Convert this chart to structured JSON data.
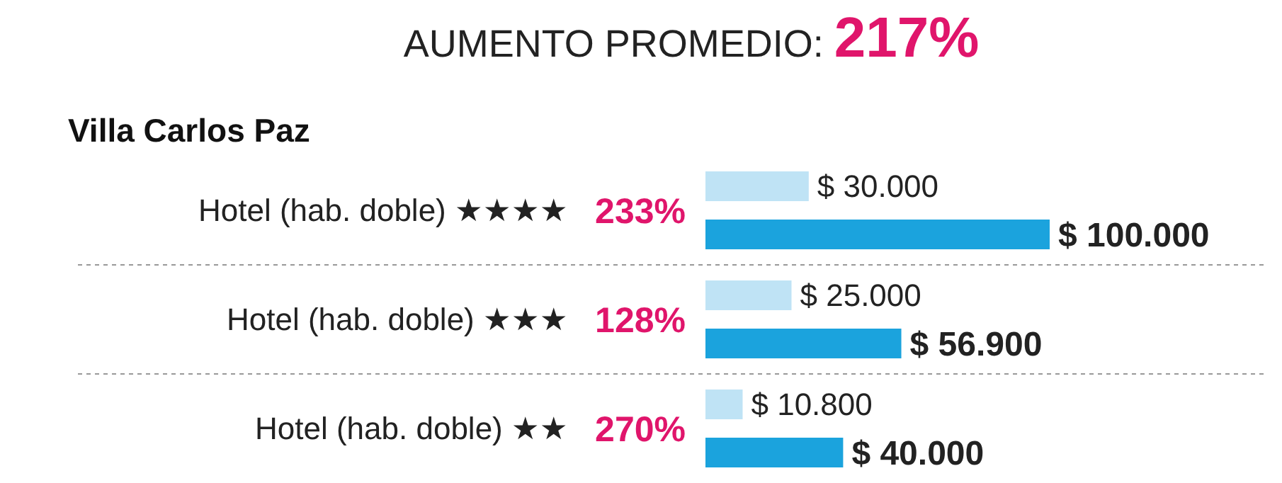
{
  "chart_data": {
    "type": "bar",
    "orientation": "horizontal",
    "title": "AUMENTO PROMEDIO: 217%",
    "subtitle": "Villa Carlos Paz",
    "categories": [
      "Hotel (hab. doble) ★★★★",
      "Hotel (hab. doble) ★★★",
      "Hotel (hab. doble) ★★"
    ],
    "series": [
      {
        "color": "#bfe3f5",
        "values": [
          30000,
          25000,
          10800
        ],
        "value_labels": [
          "$ 30.000",
          "$ 25.000",
          "$ 10.800"
        ]
      },
      {
        "color": "#1ba3dd",
        "values": [
          100000,
          56900,
          40000
        ],
        "value_labels": [
          "$ 100.000",
          "$ 56.900",
          "$ 40.000"
        ]
      }
    ],
    "annotations": [
      "233%",
      "128%",
      "270%"
    ]
  }
}
